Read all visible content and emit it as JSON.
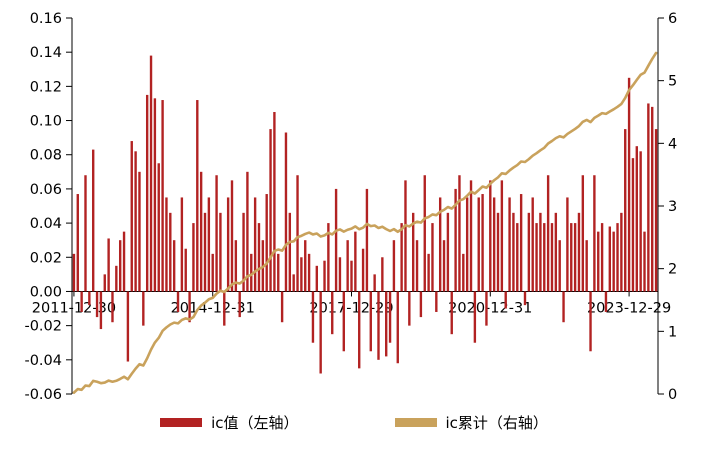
{
  "chart_data": {
    "type": "combo",
    "title": "",
    "frequency": "monthly",
    "n_points": 152,
    "x_axis": {
      "tick_labels": [
        "2011-12-30",
        "2014-12-31",
        "2017-12-29",
        "2020-12-31",
        "2023-12-29"
      ],
      "tick_indices": [
        0,
        36,
        72,
        108,
        144
      ]
    },
    "left_axis": {
      "min": -0.06,
      "max": 0.16,
      "tick_step": 0.02,
      "tick_labels": [
        "0.16",
        "0.14",
        "0.12",
        "0.10",
        "0.08",
        "0.06",
        "0.04",
        "0.02",
        "0.00",
        "-0.02",
        "-0.04",
        "-0.06"
      ]
    },
    "right_axis": {
      "min": 0,
      "max": 6,
      "tick_step": 1,
      "tick_labels": [
        "6",
        "5",
        "4",
        "3",
        "2",
        "1",
        "0"
      ]
    },
    "series": [
      {
        "name": "ic值（左轴）",
        "type": "bar",
        "axis": "left",
        "color": "#B22222",
        "values": [
          0.022,
          0.057,
          -0.012,
          0.068,
          -0.008,
          0.083,
          -0.015,
          -0.022,
          0.01,
          0.031,
          -0.018,
          0.015,
          0.03,
          0.035,
          -0.041,
          0.088,
          0.082,
          0.07,
          -0.02,
          0.115,
          0.138,
          0.113,
          0.075,
          0.112,
          0.055,
          0.046,
          0.03,
          -0.012,
          0.055,
          0.025,
          -0.018,
          0.04,
          0.112,
          0.07,
          0.046,
          0.055,
          0.022,
          0.068,
          0.046,
          -0.02,
          0.055,
          0.065,
          0.03,
          -0.015,
          0.046,
          0.07,
          0.022,
          0.055,
          0.04,
          0.03,
          0.057,
          0.095,
          0.105,
          0.022,
          -0.018,
          0.093,
          0.046,
          0.01,
          0.068,
          0.02,
          0.03,
          0.022,
          -0.03,
          0.015,
          -0.048,
          0.018,
          0.04,
          -0.025,
          0.06,
          0.02,
          -0.035,
          0.03,
          0.018,
          0.035,
          -0.045,
          0.025,
          0.06,
          -0.035,
          0.01,
          -0.04,
          0.02,
          -0.038,
          -0.03,
          0.03,
          -0.042,
          0.04,
          0.065,
          -0.02,
          0.046,
          0.03,
          -0.015,
          0.068,
          0.022,
          0.04,
          -0.012,
          0.055,
          0.03,
          0.046,
          -0.025,
          0.06,
          0.068,
          0.022,
          0.055,
          0.065,
          -0.03,
          0.055,
          0.057,
          -0.02,
          0.065,
          0.055,
          0.046,
          0.065,
          -0.01,
          0.055,
          0.046,
          0.04,
          0.057,
          -0.008,
          0.046,
          0.055,
          0.04,
          0.046,
          0.04,
          0.068,
          0.04,
          0.046,
          0.03,
          -0.018,
          0.055,
          0.04,
          0.04,
          0.046,
          0.068,
          0.03,
          -0.035,
          0.068,
          0.035,
          0.04,
          -0.012,
          0.038,
          0.035,
          0.04,
          0.046,
          0.095,
          0.125,
          0.078,
          0.085,
          0.082,
          0.035,
          0.11,
          0.108,
          0.095
        ]
      },
      {
        "name": "ic累计（右轴）",
        "type": "line",
        "axis": "right",
        "color": "#C9A25C",
        "derived": "cumulative_sum_of_bar_series"
      }
    ]
  },
  "legend": {
    "items": [
      {
        "label": "ic值（左轴）",
        "color": "#B22222"
      },
      {
        "label": "ic累计（右轴）",
        "color": "#C9A25C"
      }
    ]
  }
}
